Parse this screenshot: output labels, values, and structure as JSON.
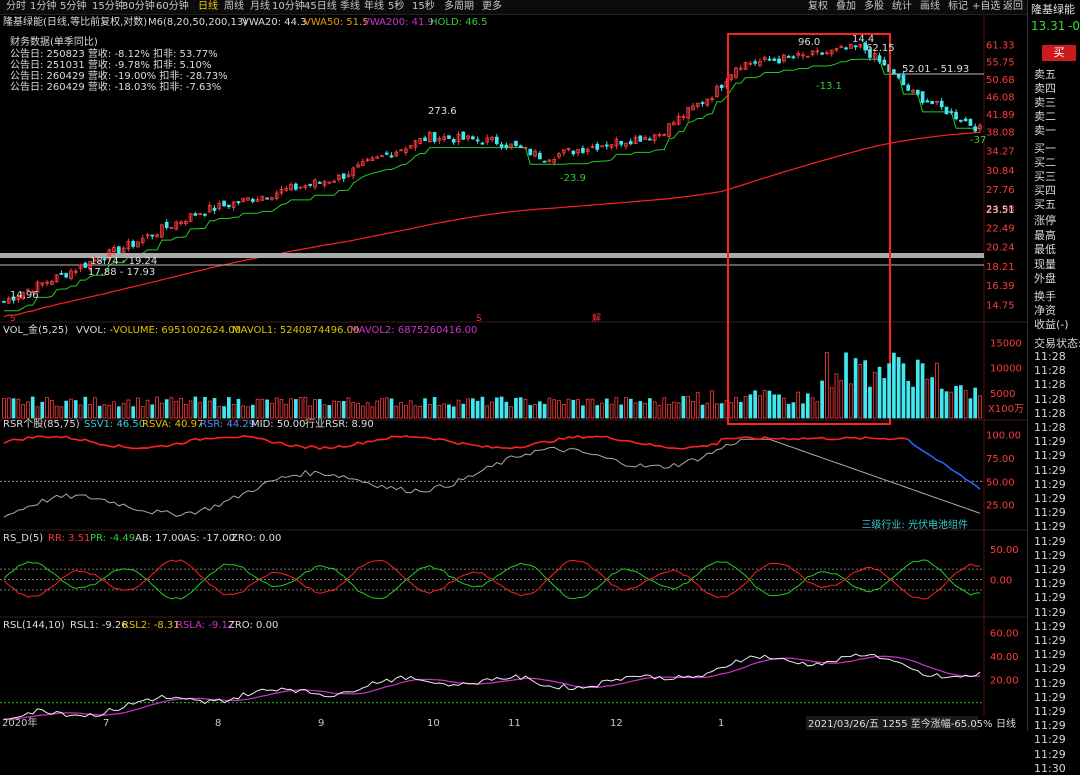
{
  "toolbar": {
    "timeframes": [
      "分时",
      "1分钟",
      "5分钟",
      "15分钟",
      "30分钟",
      "60分钟",
      "日线",
      "周线",
      "月线",
      "10分钟",
      "45日线",
      "季线",
      "年线",
      "5秒",
      "15秒",
      "多周期",
      "更多"
    ],
    "active": "日线",
    "right_items": [
      "复权",
      "叠加",
      "多股",
      "统计",
      "画线",
      "标记",
      "+自选",
      "返回"
    ]
  },
  "header": {
    "stock_title": "隆基绿能(日线,等比前复权,对数)",
    "m6_label": "M6(8,20,50,200,13)",
    "vwa20": "VWA20: 44.3",
    "vwa50": "VWA50: 51.5",
    "vwa200": "VWA200: 41.9",
    "hold": "HOLD: 46.5"
  },
  "finance": {
    "title": "财务数据(单季同比)",
    "rows": [
      "公告日: 250823  营收: -8.12%  扣非: 53.77%",
      "公告日: 251031  营收: -9.78%  扣非: 5.10%",
      "公告日: 260429  营收: -19.00%  扣非: -28.73%",
      "公告日: 260429  营收: -18.03%  扣非: -7.63%"
    ]
  },
  "sidepanel": {
    "name": "隆基绿能",
    "price": "13.31",
    "change": "-0",
    "buy_button": "买",
    "labels": [
      "卖五",
      "卖四",
      "卖三",
      "卖二",
      "卖一",
      "买一",
      "买二",
      "买三",
      "买四",
      "买五",
      "涨停",
      "最高",
      "最低",
      "现量",
      "外盘",
      "换手",
      "净资",
      "收益(-)",
      "交易状态:"
    ],
    "times": [
      "11:28",
      "11:28",
      "11:28",
      "11:28",
      "11:28",
      "11:28",
      "11:29",
      "11:29",
      "11:29",
      "11:29",
      "11:29",
      "11:29",
      "11:29",
      "11:29",
      "11:29",
      "11:29",
      "11:29",
      "11:29",
      "11:29",
      "11:29",
      "11:29",
      "11:29",
      "11:29",
      "11:29",
      "11:29",
      "11:29",
      "11:29",
      "11:29",
      "11:29",
      "11:30"
    ]
  },
  "chart_data": [
    {
      "type": "candlestick",
      "panel": "price",
      "scale": "log",
      "y_ticks": [
        61.33,
        55.75,
        50.68,
        46.08,
        41.89,
        38.08,
        34.27,
        30.84,
        27.76,
        24.98,
        22.49,
        20.24,
        18.21,
        16.39,
        14.75
      ],
      "x_ticks": [
        "2020年",
        "7",
        "8",
        "9",
        "10",
        "11",
        "12",
        "1"
      ],
      "x_range": [
        "2020-06-01",
        "2021-03-26"
      ],
      "close_approx": [
        {
          "date": "2020-06-01",
          "close": 15.0
        },
        {
          "date": "2020-06-20",
          "close": 17.5
        },
        {
          "date": "2020-07-10",
          "close": 20.5
        },
        {
          "date": "2020-07-31",
          "close": 24.5
        },
        {
          "date": "2020-08-21",
          "close": 27.0
        },
        {
          "date": "2020-09-11",
          "close": 29.5
        },
        {
          "date": "2020-10-09",
          "close": 37.0
        },
        {
          "date": "2020-10-30",
          "close": 36.0
        },
        {
          "date": "2020-11-13",
          "close": 33.0
        },
        {
          "date": "2020-11-27",
          "close": 35.0
        },
        {
          "date": "2020-12-18",
          "close": 37.5
        },
        {
          "date": "2021-01-04",
          "close": 47.0
        },
        {
          "date": "2021-01-11",
          "close": 55.0
        },
        {
          "date": "2021-02-01",
          "close": 57.5
        },
        {
          "date": "2021-02-18",
          "close": 60.5
        },
        {
          "date": "2021-03-05",
          "close": 47.0
        },
        {
          "date": "2021-03-26",
          "close": 38.5
        }
      ],
      "annotations": [
        "14.96",
        "18.74 - 19.24",
        "17.88 - 17.93",
        "273.6",
        "-23.9",
        "96.0",
        "14.4",
        "62.15",
        "-13.1",
        "52.01 - 51.93",
        "-37",
        "23.51"
      ],
      "markers": [
        "S",
        "S",
        "解"
      ]
    },
    {
      "type": "bar",
      "panel": "volume",
      "title": "VOL_金(5,25)",
      "vvol": "VVOL: -",
      "volume": "VOLUME: 6951002624.00",
      "mavol1": "MAVOL1: 5240874496.00",
      "mavol2": "MAVOL2: 6875260416.00",
      "y_ticks": [
        15000,
        10000,
        5000
      ],
      "y_unit": "X100万"
    },
    {
      "type": "line",
      "panel": "rsr",
      "title": "RSR个股(85,75)",
      "ssv1": "SSV1: 46.50",
      "rsva": "RSVA: 40.97",
      "rsr": "RSR: 44.29",
      "mid": "MID: 50.00",
      "industry_rsr": "行业RSR: 8.90",
      "y_ticks": [
        100.0,
        75.0,
        50.0,
        25.0
      ],
      "note": "三级行业: 光伏电池组件"
    },
    {
      "type": "line",
      "panel": "rs_d",
      "title": "RS_D(5)",
      "rr": "RR: 3.51",
      "pr": "PR: -4.49",
      "ab": "AB: 17.00",
      "as": "AS: -17.00",
      "zro": "ZRO: 0.00",
      "y_ticks": [
        50.0,
        0.0
      ]
    },
    {
      "type": "line",
      "panel": "rsl",
      "title": "RSL(144,10)",
      "rsl1": "RSL1: -9.26",
      "rsl2": "RSL2: -8.31",
      "rsla": "RSLA: -9.17",
      "zro": "ZRO: 0.00",
      "y_ticks": [
        60.0,
        40.0,
        20.0
      ]
    }
  ],
  "footer": {
    "date_info": "2021/03/26/五 1255 至今涨幅-65.05%",
    "period": "日线"
  },
  "colors": {
    "up": "#ff3b3b",
    "down": "#40e8f0",
    "ma_green": "#22cc22",
    "ma_red": "#ff2020",
    "highlight_box": "#ff2020"
  }
}
